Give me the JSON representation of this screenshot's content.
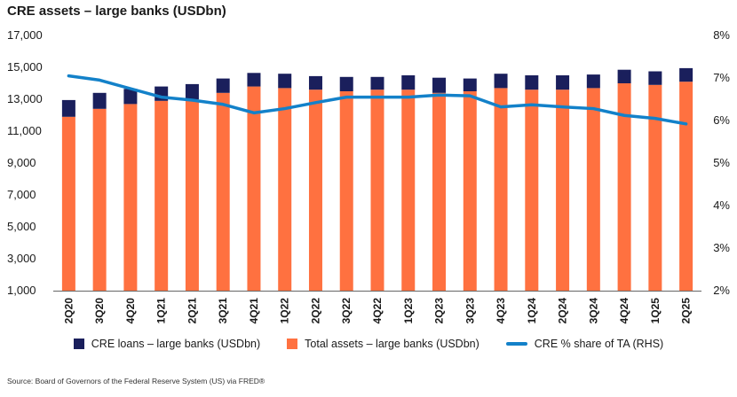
{
  "chart_data": {
    "type": "bar",
    "title": "CRE assets – large banks (USDbn)",
    "categories": [
      "2Q20",
      "3Q20",
      "4Q20",
      "1Q21",
      "2Q21",
      "3Q21",
      "4Q21",
      "1Q22",
      "2Q22",
      "3Q22",
      "4Q22",
      "1Q23",
      "2Q23",
      "3Q23",
      "4Q23",
      "1Q24",
      "2Q24",
      "3Q24",
      "4Q24",
      "1Q25",
      "2Q25"
    ],
    "series": [
      {
        "name": "Total assets – large banks (USDbn)",
        "kind": "bar",
        "axis": "left",
        "color": "#ff7140",
        "values": [
          11900,
          12400,
          12700,
          12900,
          13000,
          13400,
          13800,
          13700,
          13600,
          13500,
          13600,
          13600,
          13400,
          13500,
          13700,
          13600,
          13600,
          13700,
          14000,
          13900,
          14100
        ]
      },
      {
        "name": "CRE loans – large banks (USDbn)",
        "kind": "bar",
        "axis": "left",
        "color": "#1a1f5c",
        "values": [
          1050,
          1000,
          950,
          900,
          950,
          900,
          850,
          900,
          850,
          900,
          800,
          900,
          950,
          800,
          900,
          900,
          900,
          850,
          850,
          850,
          850
        ]
      },
      {
        "name": "CRE % share of TA (RHS)",
        "kind": "line",
        "axis": "right",
        "color": "#1381c9",
        "values": [
          7.05,
          6.95,
          6.75,
          6.55,
          6.48,
          6.38,
          6.18,
          6.28,
          6.42,
          6.55,
          6.55,
          6.55,
          6.6,
          6.58,
          6.32,
          6.37,
          6.32,
          6.28,
          6.12,
          6.05,
          5.92
        ]
      }
    ],
    "stacked": true,
    "ylim": [
      1000,
      17000
    ],
    "yticks": [
      "1,000",
      "3,000",
      "5,000",
      "7,000",
      "9,000",
      "11,000",
      "13,000",
      "15,000",
      "17,000"
    ],
    "y2lim": [
      2,
      8
    ],
    "y2ticks": [
      "2%",
      "3%",
      "4%",
      "5%",
      "6%",
      "7%",
      "8%"
    ],
    "xlabel": "",
    "ylabel": "",
    "grid": false,
    "legend_position": "bottom"
  },
  "source": "Source: Board of Governors of the Federal Reserve System (US) via FRED®"
}
